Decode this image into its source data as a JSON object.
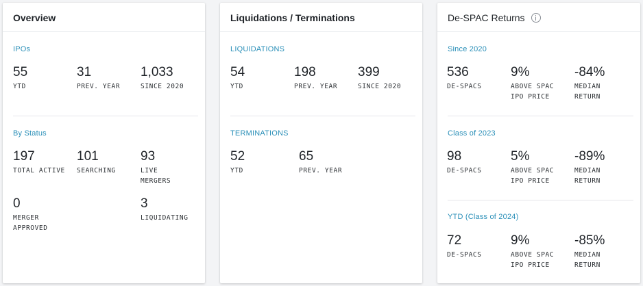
{
  "overview": {
    "title": "Overview",
    "ipos": {
      "title": "IPOs",
      "stats": [
        {
          "value": "55",
          "label": "YTD"
        },
        {
          "value": "31",
          "label": "PREV. YEAR"
        },
        {
          "value": "1,033",
          "label": "SINCE 2020"
        }
      ]
    },
    "by_status": {
      "title": "By Status",
      "stats": [
        {
          "value": "197",
          "label": "TOTAL ACTIVE"
        },
        {
          "value": "101",
          "label": "SEARCHING"
        },
        {
          "value": "93",
          "label": "LIVE\nMERGERS"
        },
        {
          "value": "0",
          "label": "MERGER\nAPPROVED"
        },
        {
          "value": "3",
          "label": "LIQUIDATING"
        }
      ]
    }
  },
  "liquidations": {
    "title": "Liquidations / Terminations",
    "liquidations": {
      "title": "LIQUIDATIONS",
      "stats": [
        {
          "value": "54",
          "label": "YTD"
        },
        {
          "value": "198",
          "label": "PREV. YEAR"
        },
        {
          "value": "399",
          "label": "SINCE 2020"
        }
      ]
    },
    "terminations": {
      "title": "TERMINATIONS",
      "stats": [
        {
          "value": "52",
          "label": "YTD"
        },
        {
          "value": "65",
          "label": "PREV. YEAR"
        }
      ]
    }
  },
  "despac": {
    "title": "De-SPAC Returns",
    "info_icon": "info-icon",
    "since_2020": {
      "title": "Since 2020",
      "stats": [
        {
          "value": "536",
          "label": "DE-SPACS"
        },
        {
          "value": "9%",
          "label": "ABOVE SPAC\nIPO PRICE"
        },
        {
          "value": "-84%",
          "label": "MEDIAN\nRETURN"
        }
      ]
    },
    "class_2023": {
      "title": "Class of 2023",
      "stats": [
        {
          "value": "98",
          "label": "DE-SPACS"
        },
        {
          "value": "5%",
          "label": "ABOVE SPAC\nIPO PRICE"
        },
        {
          "value": "-89%",
          "label": "MEDIAN\nRETURN"
        }
      ]
    },
    "ytd_2024": {
      "title": "YTD (Class of 2024)",
      "stats": [
        {
          "value": "72",
          "label": "DE-SPACS"
        },
        {
          "value": "9%",
          "label": "ABOVE SPAC\nIPO PRICE"
        },
        {
          "value": "-85%",
          "label": "MEDIAN\nRETURN"
        }
      ]
    }
  },
  "colors": {
    "accent": "#2a8fb8",
    "background": "#f3f4f6",
    "card": "#ffffff"
  }
}
